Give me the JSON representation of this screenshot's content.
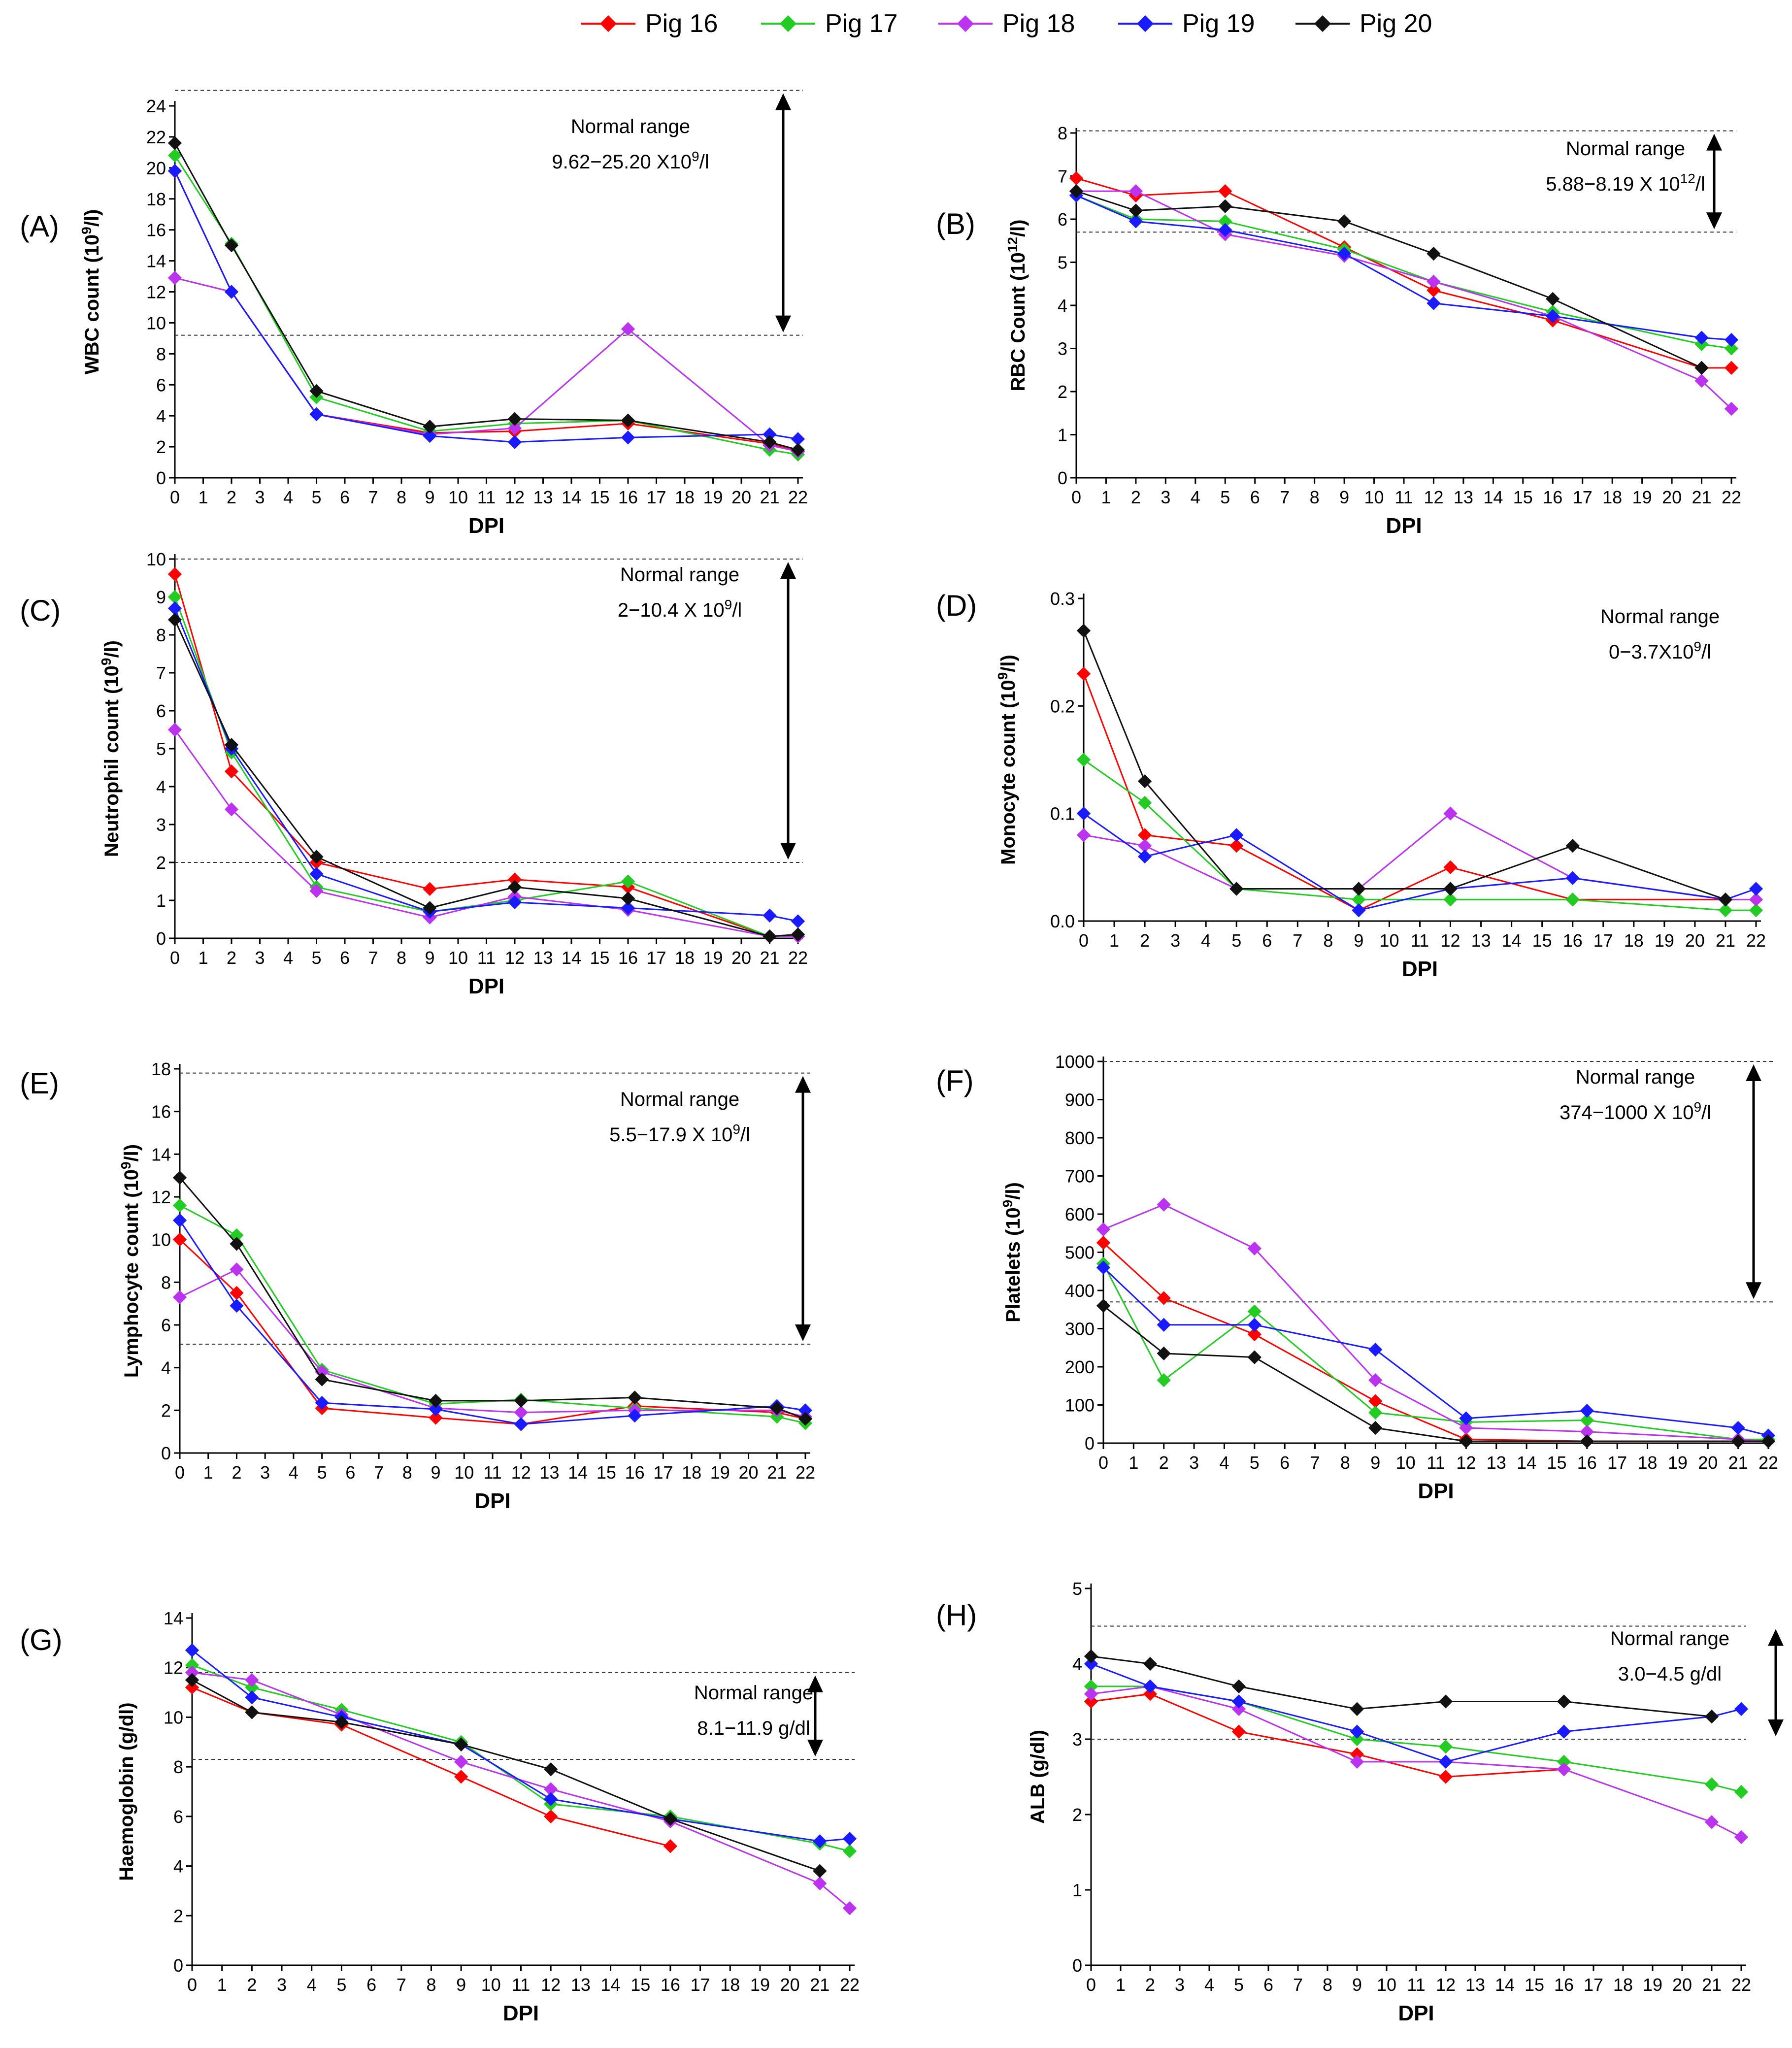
{
  "legend": [
    {
      "name": "Pig 16",
      "color": "#ff0000"
    },
    {
      "name": "Pig 17",
      "color": "#22cc22"
    },
    {
      "name": "Pig 18",
      "color": "#bb33ee"
    },
    {
      "name": "Pig 19",
      "color": "#1a1aff"
    },
    {
      "name": "Pig 20",
      "color": "#111111"
    }
  ],
  "chart_data": [
    {
      "type": "line",
      "panel": "(A)",
      "ylabel": "WBC count (10⁹/l)",
      "xlabel": "DPI",
      "xlim": [
        0,
        22
      ],
      "ylim": [
        0,
        24
      ],
      "yticks": [
        0,
        2,
        4,
        6,
        8,
        10,
        12,
        14,
        16,
        18,
        20,
        22,
        24
      ],
      "normal_range_title": "Normal range",
      "normal_range_text": "9.62−25.20 X10⁹/l",
      "ref_lines": [
        9.2,
        25
      ],
      "arrow": [
        9.2,
        25
      ],
      "series": [
        {
          "name": "Pig 16",
          "x": [
            0,
            2,
            5,
            9,
            12,
            16,
            21,
            22
          ],
          "values": [
            19.8,
            12,
            4.1,
            2.9,
            3.0,
            3.5,
            2.2,
            1.7
          ]
        },
        {
          "name": "Pig 17",
          "x": [
            0,
            2,
            5,
            9,
            12,
            16,
            21,
            22
          ],
          "values": [
            20.8,
            15.1,
            5.2,
            3.0,
            3.5,
            3.7,
            1.8,
            1.5
          ]
        },
        {
          "name": "Pig 18",
          "x": [
            0,
            2,
            5,
            9,
            12,
            16,
            21,
            22
          ],
          "values": [
            12.9,
            12,
            4.1,
            2.8,
            3.2,
            9.6,
            2.1,
            1.7
          ]
        },
        {
          "name": "Pig 19",
          "x": [
            0,
            2,
            5,
            9,
            12,
            16,
            21,
            22
          ],
          "values": [
            19.8,
            12,
            4.1,
            2.7,
            2.3,
            2.6,
            2.8,
            2.5
          ]
        },
        {
          "name": "Pig 20",
          "x": [
            0,
            2,
            5,
            9,
            12,
            16,
            21,
            22
          ],
          "values": [
            21.6,
            15,
            5.6,
            3.3,
            3.8,
            3.7,
            2.3,
            1.8
          ]
        }
      ]
    },
    {
      "type": "line",
      "panel": "(B)",
      "ylabel": "RBC Count (10¹²/l)",
      "xlabel": "DPI",
      "xlim": [
        0,
        22
      ],
      "ylim": [
        0,
        8
      ],
      "yticks": [
        0,
        1,
        2,
        3,
        4,
        5,
        6,
        7,
        8
      ],
      "normal_range_title": "Normal range",
      "normal_range_text": "5.88−8.19 X 10¹²/l",
      "ref_lines": [
        5.7,
        8.05
      ],
      "arrow": [
        5.7,
        8.05
      ],
      "series": [
        {
          "name": "Pig 16",
          "x": [
            0,
            2,
            5,
            9,
            12,
            16,
            21,
            22
          ],
          "values": [
            6.95,
            6.55,
            6.65,
            5.35,
            4.35,
            3.65,
            2.55,
            2.55
          ]
        },
        {
          "name": "Pig 17",
          "x": [
            0,
            2,
            5,
            9,
            12,
            16,
            21,
            22
          ],
          "values": [
            6.55,
            6.0,
            5.95,
            5.3,
            4.55,
            3.85,
            3.1,
            3.0
          ]
        },
        {
          "name": "Pig 18",
          "x": [
            0,
            2,
            5,
            9,
            12,
            16,
            21,
            22
          ],
          "values": [
            6.65,
            6.65,
            5.65,
            5.15,
            4.55,
            3.75,
            2.25,
            1.6
          ]
        },
        {
          "name": "Pig 19",
          "x": [
            0,
            2,
            5,
            9,
            12,
            16,
            21,
            22
          ],
          "values": [
            6.55,
            5.95,
            5.75,
            5.2,
            4.05,
            3.75,
            3.25,
            3.2
          ]
        },
        {
          "name": "Pig 20",
          "x": [
            0,
            2,
            5,
            9,
            12,
            16,
            21
          ],
          "values": [
            6.65,
            6.2,
            6.3,
            5.95,
            5.2,
            4.15,
            2.55
          ]
        }
      ]
    },
    {
      "type": "line",
      "panel": "(C)",
      "ylabel": "Neutrophil count (10⁹/l)",
      "xlabel": "DPI",
      "xlim": [
        0,
        22
      ],
      "ylim": [
        0,
        10
      ],
      "yticks": [
        0,
        1,
        2,
        3,
        4,
        5,
        6,
        7,
        8,
        9,
        10
      ],
      "normal_range_title": "Normal range",
      "normal_range_text": "2−10.4 X 10⁹/l",
      "ref_lines": [
        2,
        10
      ],
      "arrow": [
        2,
        10
      ],
      "series": [
        {
          "name": "Pig 16",
          "x": [
            0,
            2,
            5,
            9,
            12,
            16,
            21,
            22
          ],
          "values": [
            9.6,
            4.4,
            2.0,
            1.3,
            1.55,
            1.35,
            0.05,
            0.1
          ]
        },
        {
          "name": "Pig 17",
          "x": [
            0,
            2,
            5,
            9,
            12,
            16,
            21,
            22
          ],
          "values": [
            9.0,
            4.9,
            1.35,
            0.7,
            1.0,
            1.5,
            0.05,
            0.1
          ]
        },
        {
          "name": "Pig 18",
          "x": [
            0,
            2,
            5,
            9,
            12,
            16,
            21,
            22
          ],
          "values": [
            5.5,
            3.4,
            1.25,
            0.55,
            1.1,
            0.75,
            0.05,
            0.05
          ]
        },
        {
          "name": "Pig 19",
          "x": [
            0,
            2,
            5,
            9,
            12,
            16,
            21,
            22
          ],
          "values": [
            8.7,
            5.0,
            1.7,
            0.7,
            0.95,
            0.8,
            0.6,
            0.45
          ]
        },
        {
          "name": "Pig 20",
          "x": [
            0,
            2,
            5,
            9,
            12,
            16,
            21,
            22
          ],
          "values": [
            8.4,
            5.1,
            2.15,
            0.8,
            1.35,
            1.05,
            0.05,
            0.1
          ]
        }
      ]
    },
    {
      "type": "line",
      "panel": "(D)",
      "ylabel": "Monocyte count (10⁹/l)",
      "xlabel": "DPI",
      "xlim": [
        0,
        22
      ],
      "ylim": [
        0,
        0.3
      ],
      "yticks": [
        0.0,
        0.1,
        0.2,
        0.3
      ],
      "ytick_labels": [
        "0.0",
        "0.1",
        "0.2",
        "0.3"
      ],
      "normal_range_title": "Normal range",
      "normal_range_text": "0−3.7X10⁹/l",
      "ref_lines": [],
      "arrow": null,
      "series": [
        {
          "name": "Pig 16",
          "x": [
            0,
            2,
            5,
            9,
            12,
            16,
            21
          ],
          "values": [
            0.23,
            0.08,
            0.07,
            0.01,
            0.05,
            0.02,
            0.02
          ]
        },
        {
          "name": "Pig 17",
          "x": [
            0,
            2,
            5,
            9,
            12,
            16,
            21,
            22
          ],
          "values": [
            0.15,
            0.11,
            0.03,
            0.02,
            0.02,
            0.02,
            0.01,
            0.01
          ]
        },
        {
          "name": "Pig 18",
          "x": [
            0,
            2,
            5,
            9,
            12,
            16,
            21,
            22
          ],
          "values": [
            0.08,
            0.07,
            0.03,
            0.03,
            0.1,
            0.04,
            0.02,
            0.02
          ]
        },
        {
          "name": "Pig 19",
          "x": [
            0,
            2,
            5,
            9,
            12,
            16,
            21,
            22
          ],
          "values": [
            0.1,
            0.06,
            0.08,
            0.01,
            0.03,
            0.04,
            0.02,
            0.03
          ]
        },
        {
          "name": "Pig 20",
          "x": [
            0,
            2,
            5,
            9,
            12,
            16,
            21
          ],
          "values": [
            0.27,
            0.13,
            0.03,
            0.03,
            0.03,
            0.07,
            0.02
          ]
        }
      ]
    },
    {
      "type": "line",
      "panel": "(E)",
      "ylabel": "Lymphocyte count (10⁹/l)",
      "xlabel": "DPI",
      "xlim": [
        0,
        22
      ],
      "ylim": [
        0,
        18
      ],
      "yticks": [
        0,
        2,
        4,
        6,
        8,
        10,
        12,
        14,
        16,
        18
      ],
      "normal_range_title": "Normal range",
      "normal_range_text": "5.5−17.9 X 10⁹/l",
      "ref_lines": [
        5.1,
        17.8
      ],
      "arrow": [
        5.1,
        17.8
      ],
      "series": [
        {
          "name": "Pig 16",
          "x": [
            0,
            2,
            5,
            9,
            12,
            16,
            21,
            22
          ],
          "values": [
            10.0,
            7.5,
            2.1,
            1.65,
            1.35,
            2.2,
            1.9,
            1.6
          ]
        },
        {
          "name": "Pig 17",
          "x": [
            0,
            2,
            5,
            9,
            12,
            16,
            21,
            22
          ],
          "values": [
            11.6,
            10.2,
            3.9,
            2.3,
            2.5,
            2.1,
            1.7,
            1.4
          ]
        },
        {
          "name": "Pig 18",
          "x": [
            0,
            2,
            5,
            9,
            12,
            16,
            21,
            22
          ],
          "values": [
            7.3,
            8.6,
            3.8,
            2.1,
            1.9,
            2.0,
            2.0,
            1.7
          ]
        },
        {
          "name": "Pig 19",
          "x": [
            0,
            2,
            5,
            9,
            12,
            16,
            21,
            22
          ],
          "values": [
            10.9,
            6.9,
            2.35,
            2.05,
            1.35,
            1.75,
            2.2,
            2.0
          ]
        },
        {
          "name": "Pig 20",
          "x": [
            0,
            2,
            5,
            9,
            12,
            16,
            21,
            22
          ],
          "values": [
            12.9,
            9.8,
            3.45,
            2.45,
            2.45,
            2.6,
            2.1,
            1.6
          ]
        }
      ]
    },
    {
      "type": "line",
      "panel": "(F)",
      "ylabel": "Platelets (10⁹/l)",
      "xlabel": "DPI",
      "xlim": [
        0,
        22
      ],
      "ylim": [
        0,
        1000
      ],
      "yticks": [
        0,
        100,
        200,
        300,
        400,
        500,
        600,
        700,
        800,
        900,
        1000
      ],
      "normal_range_title": "Normal range",
      "normal_range_text": "374−1000 X 10⁹/l",
      "ref_lines": [
        370,
        1000
      ],
      "arrow": [
        370,
        1000
      ],
      "series": [
        {
          "name": "Pig 16",
          "x": [
            0,
            2,
            5,
            9,
            12,
            16,
            21,
            22
          ],
          "values": [
            525,
            380,
            285,
            110,
            10,
            5,
            5,
            5
          ]
        },
        {
          "name": "Pig 17",
          "x": [
            0,
            2,
            5,
            9,
            12,
            16,
            21,
            22
          ],
          "values": [
            470,
            165,
            345,
            80,
            55,
            60,
            10,
            10
          ]
        },
        {
          "name": "Pig 18",
          "x": [
            0,
            2,
            5,
            9,
            12,
            16,
            21,
            22
          ],
          "values": [
            560,
            625,
            510,
            165,
            40,
            30,
            10,
            5
          ]
        },
        {
          "name": "Pig 19",
          "x": [
            0,
            2,
            5,
            9,
            12,
            16,
            21,
            22
          ],
          "values": [
            460,
            310,
            310,
            245,
            65,
            85,
            40,
            20
          ]
        },
        {
          "name": "Pig 20",
          "x": [
            0,
            2,
            5,
            9,
            12,
            16,
            21,
            22
          ],
          "values": [
            360,
            235,
            225,
            40,
            5,
            5,
            5,
            5
          ]
        }
      ]
    },
    {
      "type": "line",
      "panel": "(G)",
      "ylabel": "Haemoglobin (g/dl)",
      "xlabel": "DPI",
      "xlim": [
        0,
        22
      ],
      "ylim": [
        0,
        14
      ],
      "yticks": [
        0,
        2,
        4,
        6,
        8,
        10,
        12,
        14
      ],
      "normal_range_title": "Normal range",
      "normal_range_text": "8.1−11.9 g/dl",
      "ref_lines": [
        8.3,
        11.8
      ],
      "arrow": [
        8.3,
        11.8
      ],
      "series": [
        {
          "name": "Pig 16",
          "x": [
            0,
            2,
            5,
            9,
            12,
            16
          ],
          "values": [
            11.2,
            10.2,
            9.7,
            7.6,
            6.0,
            4.8
          ]
        },
        {
          "name": "Pig 17",
          "x": [
            0,
            2,
            5,
            9,
            12,
            16,
            21,
            22
          ],
          "values": [
            12.1,
            11.2,
            10.3,
            9.0,
            6.5,
            6.0,
            4.9,
            4.6
          ]
        },
        {
          "name": "Pig 18",
          "x": [
            0,
            2,
            5,
            9,
            12,
            16,
            21,
            22
          ],
          "values": [
            11.8,
            11.5,
            10.1,
            8.2,
            7.1,
            5.8,
            3.3,
            2.3
          ]
        },
        {
          "name": "Pig 19",
          "x": [
            0,
            2,
            5,
            9,
            12,
            16,
            21,
            22
          ],
          "values": [
            12.7,
            10.8,
            10.0,
            8.9,
            6.7,
            5.9,
            5.0,
            5.1
          ]
        },
        {
          "name": "Pig 20",
          "x": [
            0,
            2,
            5,
            9,
            12,
            16,
            21
          ],
          "values": [
            11.5,
            10.2,
            9.8,
            8.9,
            7.9,
            5.9,
            3.8
          ]
        }
      ]
    },
    {
      "type": "line",
      "panel": "(H)",
      "ylabel": "ALB (g/dl)",
      "xlabel": "DPI",
      "xlim": [
        0,
        22
      ],
      "ylim": [
        0,
        5
      ],
      "yticks": [
        0,
        1,
        2,
        3,
        4,
        5
      ],
      "normal_range_title": "Normal range",
      "normal_range_text": "3.0−4.5 g/dl",
      "ref_lines": [
        3.0,
        4.5
      ],
      "arrow": [
        3.0,
        4.5
      ],
      "series": [
        {
          "name": "Pig 16",
          "x": [
            0,
            2,
            5,
            9,
            12,
            16
          ],
          "values": [
            3.5,
            3.6,
            3.1,
            2.8,
            2.5,
            2.6
          ]
        },
        {
          "name": "Pig 17",
          "x": [
            0,
            2,
            5,
            9,
            12,
            16,
            21,
            22
          ],
          "values": [
            3.7,
            3.7,
            3.5,
            3.0,
            2.9,
            2.7,
            2.4,
            2.3
          ]
        },
        {
          "name": "Pig 18",
          "x": [
            0,
            2,
            5,
            9,
            12,
            16,
            21,
            22
          ],
          "values": [
            3.6,
            3.7,
            3.4,
            2.7,
            2.7,
            2.6,
            1.9,
            1.7
          ]
        },
        {
          "name": "Pig 19",
          "x": [
            0,
            2,
            5,
            9,
            12,
            16,
            21,
            22
          ],
          "values": [
            4.0,
            3.7,
            3.5,
            3.1,
            2.7,
            3.1,
            3.3,
            3.4
          ]
        },
        {
          "name": "Pig 20",
          "x": [
            0,
            2,
            5,
            9,
            12,
            16,
            21
          ],
          "values": [
            4.1,
            4.0,
            3.7,
            3.4,
            3.5,
            3.5,
            3.3
          ]
        }
      ]
    }
  ]
}
